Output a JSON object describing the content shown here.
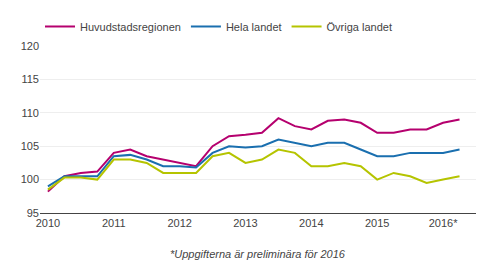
{
  "chart_data": {
    "type": "line",
    "x": [
      2010.0,
      2010.25,
      2010.5,
      2010.75,
      2011.0,
      2011.25,
      2011.5,
      2011.75,
      2012.0,
      2012.25,
      2012.5,
      2012.75,
      2013.0,
      2013.25,
      2013.5,
      2013.75,
      2014.0,
      2014.25,
      2014.5,
      2014.75,
      2015.0,
      2015.25,
      2015.5,
      2015.75,
      2016.0,
      2016.25
    ],
    "series": [
      {
        "name": "Huvudstadsregionen",
        "color": "#b5006e",
        "values": [
          98.2,
          100.5,
          101.0,
          101.2,
          104.0,
          104.5,
          103.5,
          103.0,
          102.5,
          102.0,
          105.0,
          106.5,
          106.7,
          107.0,
          109.2,
          108.0,
          107.5,
          108.8,
          109.0,
          108.5,
          107.0,
          107.0,
          107.5,
          107.5,
          108.5,
          109.0
        ]
      },
      {
        "name": "Hela landet",
        "color": "#1a6faf",
        "values": [
          99.0,
          100.5,
          100.5,
          100.5,
          103.5,
          103.7,
          103.0,
          102.0,
          102.0,
          101.8,
          104.0,
          105.0,
          104.8,
          105.0,
          106.0,
          105.5,
          105.0,
          105.5,
          105.5,
          104.5,
          103.5,
          103.5,
          104.0,
          104.0,
          104.0,
          104.5
        ]
      },
      {
        "name": "Övriga landet",
        "color": "#b5c400",
        "values": [
          98.5,
          100.3,
          100.3,
          100.0,
          103.0,
          103.0,
          102.5,
          101.0,
          101.0,
          101.0,
          103.5,
          104.0,
          102.5,
          103.0,
          104.5,
          104.0,
          102.0,
          102.0,
          102.5,
          102.0,
          100.0,
          101.0,
          100.5,
          99.5,
          100.0,
          100.5
        ]
      }
    ],
    "xlim": [
      2009.88,
      2016.5
    ],
    "xticks": [
      2010,
      2011,
      2012,
      2013,
      2014,
      2015,
      {
        "value": 2016,
        "label": "2016*"
      }
    ],
    "ylim": [
      95,
      120
    ],
    "yticks": [
      95,
      100,
      105,
      110,
      115,
      120
    ],
    "grid": true,
    "legend": "upper left",
    "annotations": [
      "*Uppgifterna är preliminära för 2016"
    ]
  }
}
